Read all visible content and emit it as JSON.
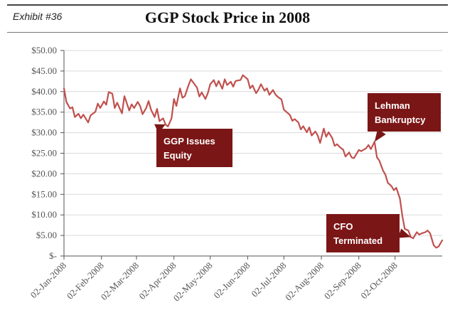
{
  "header": {
    "exhibit": "Exhibit #36",
    "title": "GGP Stock Price in 2008"
  },
  "colors": {
    "line": "#c0504d",
    "callout": "#7b1616",
    "grid": "#d9d9d9",
    "axis": "#555555"
  },
  "chart_data": {
    "type": "line",
    "title": "GGP Stock Price in 2008",
    "xlabel": "",
    "ylabel": "",
    "ylim": [
      0,
      50
    ],
    "grid": true,
    "y_ticks": [
      0,
      5,
      10,
      15,
      20,
      25,
      30,
      35,
      40,
      45,
      50
    ],
    "y_tick_labels": [
      "$-",
      "$5.00",
      "$10.00",
      "$15.00",
      "$20.00",
      "$25.00",
      "$30.00",
      "$35.00",
      "$40.00",
      "$45.00",
      "$50.00"
    ],
    "x_tick_dates": [
      "2008-01-02",
      "2008-02-02",
      "2008-03-02",
      "2008-04-02",
      "2008-05-02",
      "2008-06-02",
      "2008-07-02",
      "2008-08-02",
      "2008-09-02",
      "2008-10-02"
    ],
    "x_tick_labels": [
      "02-Jan-2008",
      "02-Feb-2008",
      "02-Mar-2008",
      "02-Apr-2008",
      "02-May-2008",
      "02-Jun-2008",
      "02-Jul-2008",
      "02-Aug-2008",
      "02-Sep-2008",
      "02-Oct-2008"
    ],
    "xlim": [
      "2008-01-02",
      "2008-11-10"
    ],
    "series": [
      {
        "name": "",
        "points": [
          [
            "2008-01-02",
            40.8
          ],
          [
            "2008-01-04",
            37.5
          ],
          [
            "2008-01-07",
            35.9
          ],
          [
            "2008-01-09",
            36.2
          ],
          [
            "2008-01-11",
            33.8
          ],
          [
            "2008-01-14",
            34.6
          ],
          [
            "2008-01-16",
            33.5
          ],
          [
            "2008-01-18",
            34.4
          ],
          [
            "2008-01-22",
            32.5
          ],
          [
            "2008-01-24",
            34.2
          ],
          [
            "2008-01-28",
            35.1
          ],
          [
            "2008-01-30",
            37.1
          ],
          [
            "2008-02-01",
            36.0
          ],
          [
            "2008-02-04",
            37.6
          ],
          [
            "2008-02-06",
            36.8
          ],
          [
            "2008-02-08",
            39.9
          ],
          [
            "2008-02-11",
            39.5
          ],
          [
            "2008-02-13",
            36.0
          ],
          [
            "2008-02-15",
            37.3
          ],
          [
            "2008-02-19",
            34.7
          ],
          [
            "2008-02-21",
            38.9
          ],
          [
            "2008-02-25",
            35.4
          ],
          [
            "2008-02-27",
            36.9
          ],
          [
            "2008-02-29",
            36.0
          ],
          [
            "2008-03-03",
            37.5
          ],
          [
            "2008-03-05",
            36.5
          ],
          [
            "2008-03-07",
            34.5
          ],
          [
            "2008-03-10",
            36.0
          ],
          [
            "2008-03-12",
            37.7
          ],
          [
            "2008-03-14",
            35.6
          ],
          [
            "2008-03-17",
            33.8
          ],
          [
            "2008-03-19",
            35.8
          ],
          [
            "2008-03-21",
            32.8
          ],
          [
            "2008-03-24",
            33.5
          ],
          [
            "2008-03-26",
            32.0
          ],
          [
            "2008-03-28",
            31.5
          ],
          [
            "2008-03-31",
            33.5
          ],
          [
            "2008-04-02",
            38.2
          ],
          [
            "2008-04-04",
            36.5
          ],
          [
            "2008-04-07",
            40.8
          ],
          [
            "2008-04-09",
            38.5
          ],
          [
            "2008-04-11",
            38.9
          ],
          [
            "2008-04-14",
            41.5
          ],
          [
            "2008-04-16",
            43.0
          ],
          [
            "2008-04-18",
            42.2
          ],
          [
            "2008-04-21",
            41.0
          ],
          [
            "2008-04-23",
            38.8
          ],
          [
            "2008-04-25",
            39.8
          ],
          [
            "2008-04-28",
            38.2
          ],
          [
            "2008-04-30",
            39.6
          ],
          [
            "2008-05-02",
            41.8
          ],
          [
            "2008-05-05",
            42.8
          ],
          [
            "2008-05-07",
            41.3
          ],
          [
            "2008-05-09",
            42.6
          ],
          [
            "2008-05-12",
            40.7
          ],
          [
            "2008-05-14",
            43.0
          ],
          [
            "2008-05-16",
            41.6
          ],
          [
            "2008-05-19",
            42.4
          ],
          [
            "2008-05-21",
            41.2
          ],
          [
            "2008-05-23",
            42.6
          ],
          [
            "2008-05-27",
            42.8
          ],
          [
            "2008-05-29",
            44.0
          ],
          [
            "2008-06-02",
            43.0
          ],
          [
            "2008-06-04",
            40.8
          ],
          [
            "2008-06-06",
            41.5
          ],
          [
            "2008-06-09",
            39.6
          ],
          [
            "2008-06-11",
            40.5
          ],
          [
            "2008-06-13",
            41.8
          ],
          [
            "2008-06-16",
            40.2
          ],
          [
            "2008-06-18",
            40.8
          ],
          [
            "2008-06-20",
            39.2
          ],
          [
            "2008-06-23",
            40.4
          ],
          [
            "2008-06-25",
            39.3
          ],
          [
            "2008-06-27",
            38.7
          ],
          [
            "2008-06-30",
            38.1
          ],
          [
            "2008-07-02",
            35.6
          ],
          [
            "2008-07-07",
            34.3
          ],
          [
            "2008-07-09",
            32.9
          ],
          [
            "2008-07-11",
            33.3
          ],
          [
            "2008-07-14",
            32.5
          ],
          [
            "2008-07-16",
            30.8
          ],
          [
            "2008-07-18",
            31.6
          ],
          [
            "2008-07-21",
            30.1
          ],
          [
            "2008-07-23",
            31.3
          ],
          [
            "2008-07-25",
            29.3
          ],
          [
            "2008-07-28",
            30.3
          ],
          [
            "2008-07-30",
            29.3
          ],
          [
            "2008-08-01",
            27.5
          ],
          [
            "2008-08-04",
            31.0
          ],
          [
            "2008-08-06",
            29.0
          ],
          [
            "2008-08-08",
            30.1
          ],
          [
            "2008-08-11",
            28.7
          ],
          [
            "2008-08-13",
            26.8
          ],
          [
            "2008-08-15",
            27.2
          ],
          [
            "2008-08-18",
            26.3
          ],
          [
            "2008-08-20",
            25.9
          ],
          [
            "2008-08-22",
            24.2
          ],
          [
            "2008-08-25",
            25.2
          ],
          [
            "2008-08-27",
            24.0
          ],
          [
            "2008-08-29",
            23.8
          ],
          [
            "2008-09-02",
            25.8
          ],
          [
            "2008-09-04",
            25.5
          ],
          [
            "2008-09-08",
            26.2
          ],
          [
            "2008-09-10",
            27.0
          ],
          [
            "2008-09-12",
            26.0
          ],
          [
            "2008-09-15",
            27.8
          ],
          [
            "2008-09-17",
            24.0
          ],
          [
            "2008-09-19",
            23.2
          ],
          [
            "2008-09-22",
            20.8
          ],
          [
            "2008-09-24",
            19.8
          ],
          [
            "2008-09-26",
            17.8
          ],
          [
            "2008-09-29",
            17.0
          ],
          [
            "2008-10-01",
            16.0
          ],
          [
            "2008-10-03",
            16.6
          ],
          [
            "2008-10-06",
            14.0
          ],
          [
            "2008-10-08",
            9.8
          ],
          [
            "2008-10-10",
            6.6
          ],
          [
            "2008-10-13",
            6.2
          ],
          [
            "2008-10-15",
            4.6
          ],
          [
            "2008-10-17",
            4.3
          ],
          [
            "2008-10-20",
            5.8
          ],
          [
            "2008-10-22",
            5.2
          ],
          [
            "2008-10-24",
            5.5
          ],
          [
            "2008-10-27",
            5.8
          ],
          [
            "2008-10-29",
            6.2
          ],
          [
            "2008-10-31",
            5.5
          ],
          [
            "2008-11-03",
            2.6
          ],
          [
            "2008-11-05",
            2.0
          ],
          [
            "2008-11-07",
            2.3
          ],
          [
            "2008-11-10",
            3.8
          ]
        ]
      }
    ],
    "annotations": [
      {
        "label_lines": [
          "GGP Issues",
          "Equity"
        ],
        "date": "2008-03-26",
        "value": 32.0
      },
      {
        "label_lines": [
          "Lehman",
          "Bankruptcy"
        ],
        "date": "2008-09-15",
        "value": 27.8
      },
      {
        "label_lines": [
          "CFO",
          "Terminated"
        ],
        "date": "2008-10-15",
        "value": 4.6
      }
    ]
  }
}
